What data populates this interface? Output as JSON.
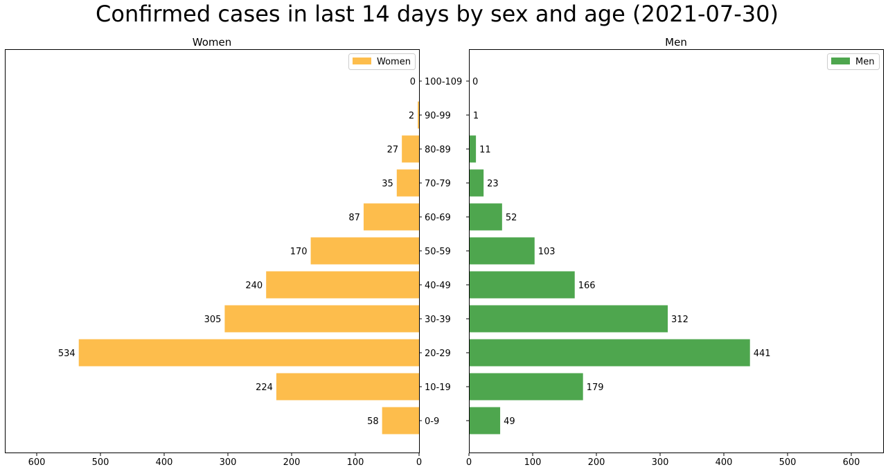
{
  "chart_data": {
    "type": "bar",
    "title": "Confirmed cases in last 14 days by sex and age (2021-07-30)",
    "categories": [
      "0-9",
      "10-19",
      "20-29",
      "30-39",
      "40-49",
      "50-59",
      "60-69",
      "70-79",
      "80-89",
      "90-99",
      "100-109"
    ],
    "xlim": [
      0,
      650
    ],
    "xticks": [
      "0",
      "100",
      "200",
      "300",
      "400",
      "500",
      "600"
    ],
    "panels": [
      {
        "title": "Women",
        "legend": "Women",
        "legend_position": "top-right",
        "color": "#fdbd4c",
        "direction": "left",
        "values": [
          58,
          224,
          534,
          305,
          240,
          170,
          87,
          35,
          27,
          2,
          0
        ],
        "labels": [
          "58",
          "224",
          "534",
          "305",
          "240",
          "170",
          "87",
          "35",
          "27",
          "2",
          "0"
        ]
      },
      {
        "title": "Men",
        "legend": "Men",
        "legend_position": "top-right",
        "color": "#4ea64e",
        "direction": "right",
        "values": [
          49,
          179,
          441,
          312,
          166,
          103,
          52,
          23,
          11,
          1,
          0
        ],
        "labels": [
          "49",
          "179",
          "441",
          "312",
          "166",
          "103",
          "52",
          "23",
          "11",
          "1",
          "0"
        ]
      }
    ]
  }
}
